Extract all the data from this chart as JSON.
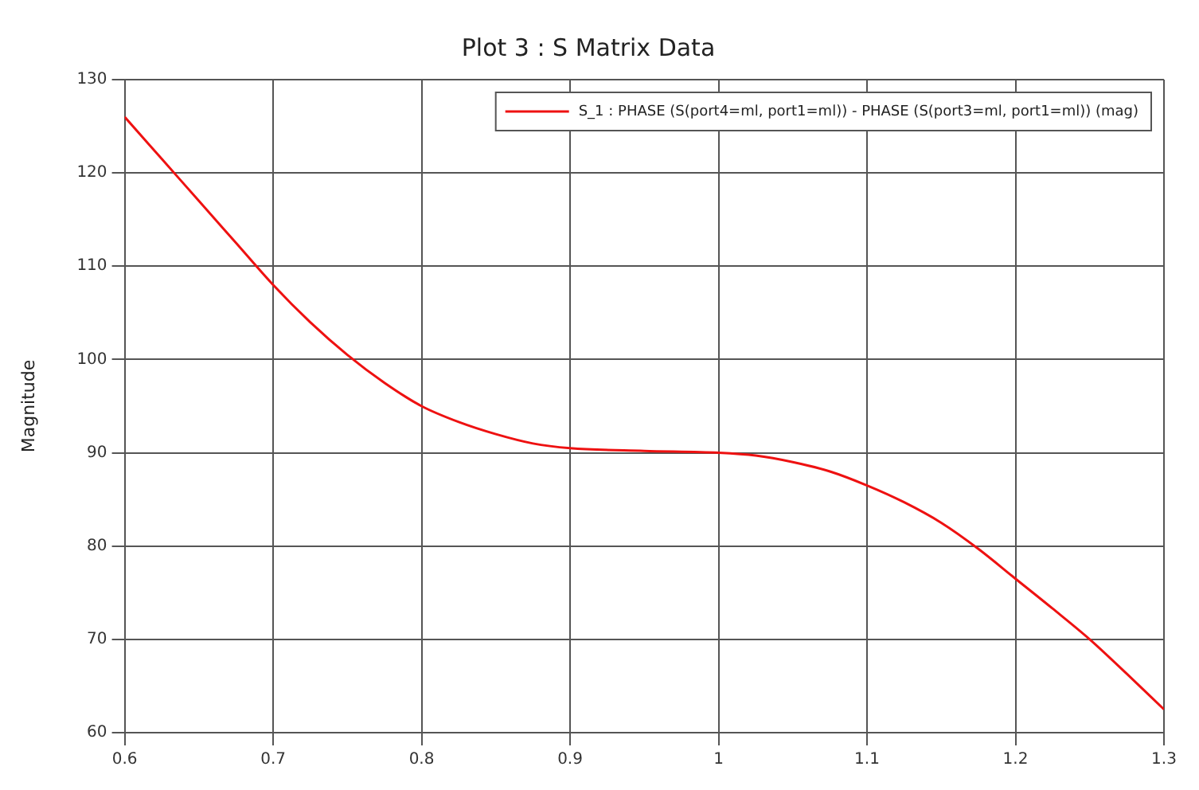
{
  "chart_data": {
    "type": "line",
    "title": "Plot 3 : S Matrix Data",
    "ylabel": "Magnitude",
    "x": [
      0.6,
      0.625,
      0.65,
      0.675,
      0.7,
      0.725,
      0.75,
      0.775,
      0.8,
      0.825,
      0.85,
      0.875,
      0.9,
      0.95,
      1.0,
      1.025,
      1.05,
      1.075,
      1.1,
      1.125,
      1.15,
      1.175,
      1.2,
      1.225,
      1.25,
      1.275,
      1.3
    ],
    "series": [
      {
        "name": "S_1 : PHASE (S(port4=ml, port1=ml)) - PHASE (S(port3=ml, port1=ml)) (mag)",
        "color": "#ee1111",
        "values": [
          126,
          121.5,
          117,
          112.5,
          108,
          104,
          100.5,
          97.5,
          95,
          93.3,
          92,
          91,
          90.5,
          90.2,
          90,
          89.7,
          89,
          88,
          86.5,
          84.7,
          82.5,
          79.7,
          76.5,
          73.3,
          70,
          66.3,
          62.5
        ]
      }
    ],
    "xlim": [
      0.6,
      1.3
    ],
    "xticks": [
      0.6,
      0.7,
      0.8,
      0.9,
      {
        "value": 1,
        "label": "1"
      },
      1.1,
      1.2,
      1.3
    ],
    "ylim": [
      60,
      130
    ],
    "yticks": [
      60,
      70,
      80,
      90,
      100,
      110,
      120,
      130
    ],
    "grid": true,
    "legend": "top right",
    "marker": "none",
    "line_style": "solid"
  }
}
